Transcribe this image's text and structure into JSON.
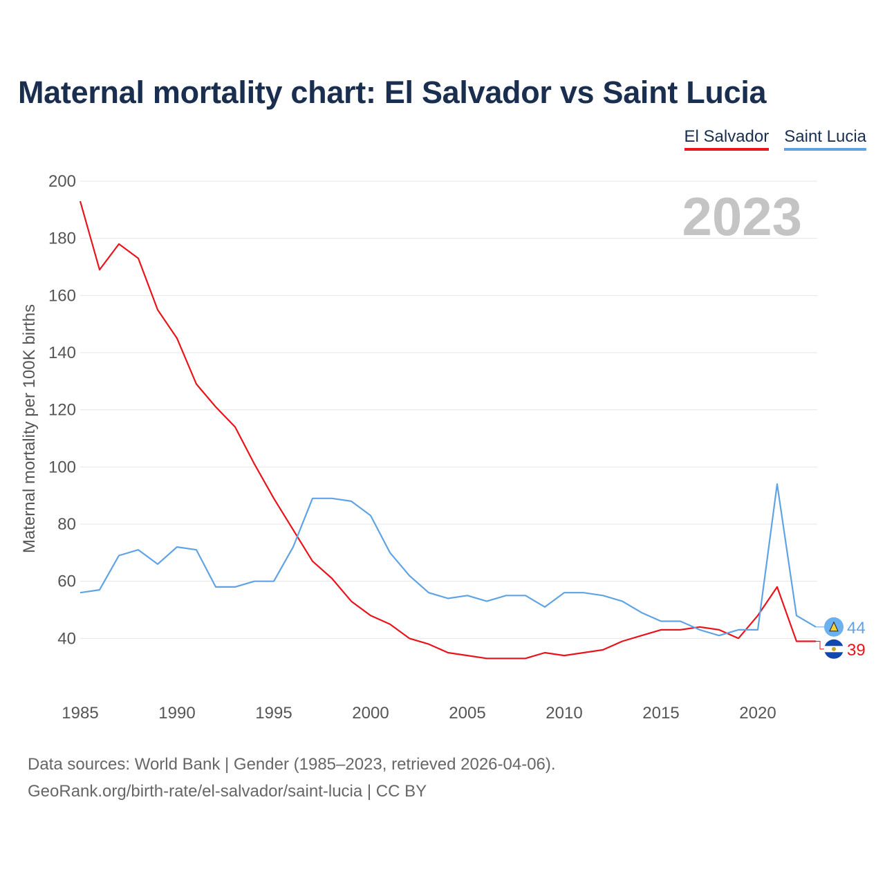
{
  "chart_data": {
    "type": "line",
    "title": "Maternal mortality chart: El Salvador vs Saint Lucia",
    "ylabel": "Maternal mortality per 100K births",
    "xlabel": "",
    "ylim": [
      20,
      200
    ],
    "xlim": [
      1985,
      2023
    ],
    "yticks": [
      40,
      60,
      80,
      100,
      120,
      140,
      160,
      180,
      200
    ],
    "xticks": [
      1985,
      1990,
      1995,
      2000,
      2005,
      2010,
      2015,
      2020
    ],
    "year_label": "2023",
    "legend_position": "top-right",
    "x": [
      1985,
      1986,
      1987,
      1988,
      1989,
      1990,
      1991,
      1992,
      1993,
      1994,
      1995,
      1996,
      1997,
      1998,
      1999,
      2000,
      2001,
      2002,
      2003,
      2004,
      2005,
      2006,
      2007,
      2008,
      2009,
      2010,
      2011,
      2012,
      2013,
      2014,
      2015,
      2016,
      2017,
      2018,
      2019,
      2020,
      2021,
      2022,
      2023
    ],
    "series": [
      {
        "name": "El Salvador",
        "color": "#e8141a",
        "flag": "el-salvador-flag-icon",
        "end_label": "39",
        "values": [
          193,
          169,
          178,
          173,
          155,
          145,
          129,
          121,
          114,
          101,
          89,
          78,
          67,
          61,
          53,
          48,
          45,
          40,
          38,
          35,
          34,
          33,
          33,
          33,
          35,
          34,
          35,
          36,
          39,
          41,
          43,
          43,
          44,
          43,
          40,
          48,
          58,
          39,
          39
        ]
      },
      {
        "name": "Saint Lucia",
        "color": "#5fa3e4",
        "flag": "saint-lucia-flag-icon",
        "end_label": "44",
        "values": [
          56,
          57,
          69,
          71,
          66,
          72,
          71,
          58,
          58,
          60,
          60,
          72,
          89,
          89,
          88,
          83,
          70,
          62,
          56,
          54,
          55,
          53,
          55,
          55,
          51,
          56,
          56,
          55,
          53,
          49,
          46,
          46,
          43,
          41,
          43,
          43,
          94,
          48,
          44
        ]
      }
    ]
  },
  "footer": {
    "source_line": "Data sources: World Bank | Gender (1985–2023, retrieved 2026-04-06).",
    "link_line": "GeoRank.org/birth-rate/el-salvador/saint-lucia | CC BY"
  }
}
